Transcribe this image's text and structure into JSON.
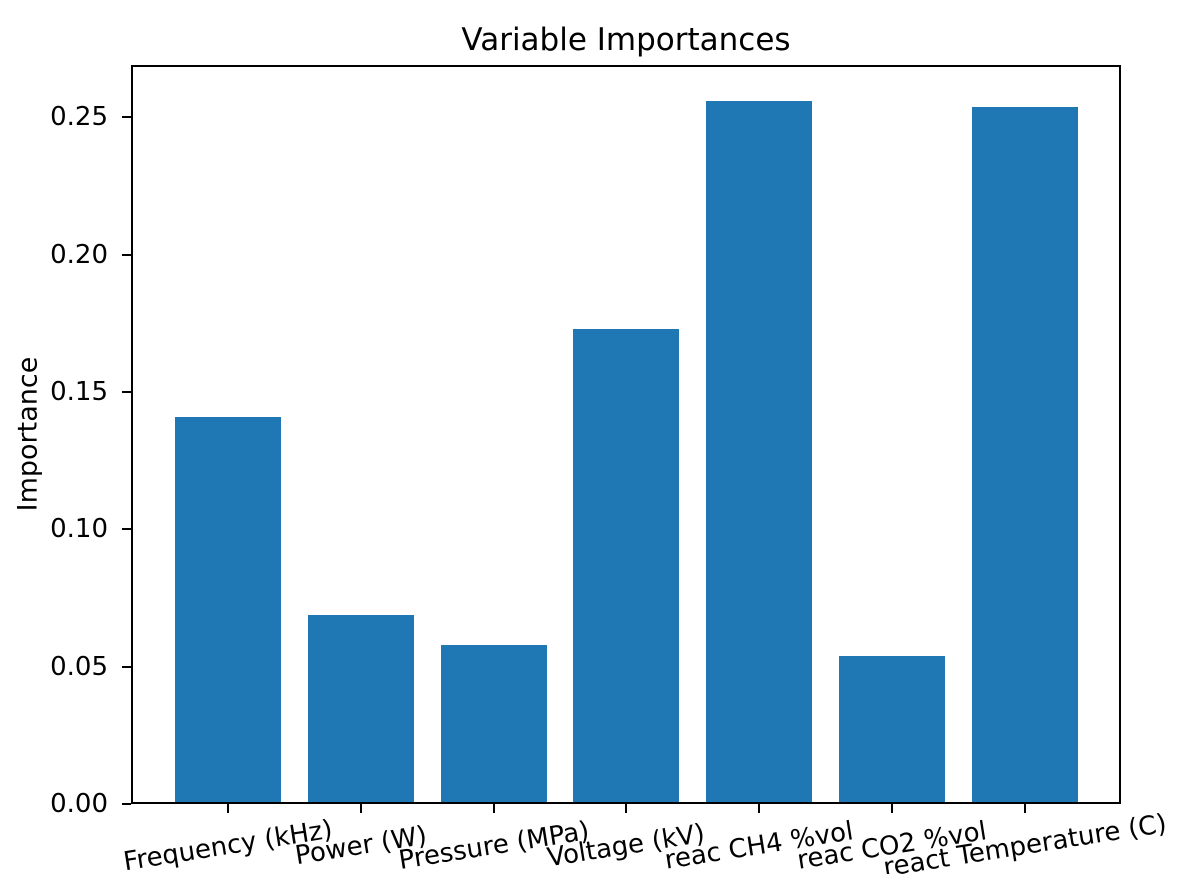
{
  "chart_data": {
    "type": "bar",
    "title": "Variable Importances",
    "xlabel": "",
    "ylabel": "Importance",
    "categories": [
      "Frequency (kHz)",
      "Power (W)",
      "Pressure (MPa)",
      "Voltage (kV)",
      "reac CH4 %vol",
      "reac CO2 %vol",
      "react Temperature (C)"
    ],
    "values": [
      0.14,
      0.068,
      0.057,
      0.172,
      0.255,
      0.053,
      0.253
    ],
    "yticks": [
      "0.00",
      "0.05",
      "0.10",
      "0.15",
      "0.20",
      "0.25"
    ],
    "ytick_values": [
      0.0,
      0.05,
      0.1,
      0.15,
      0.2,
      0.25
    ],
    "ylim": [
      0,
      0.269
    ],
    "xtick_rotation_deg": 10,
    "grid": false,
    "legend_position": "none",
    "bar_color": "#1f77b4",
    "axis_color": "#000000",
    "background_color": "#ffffff"
  }
}
